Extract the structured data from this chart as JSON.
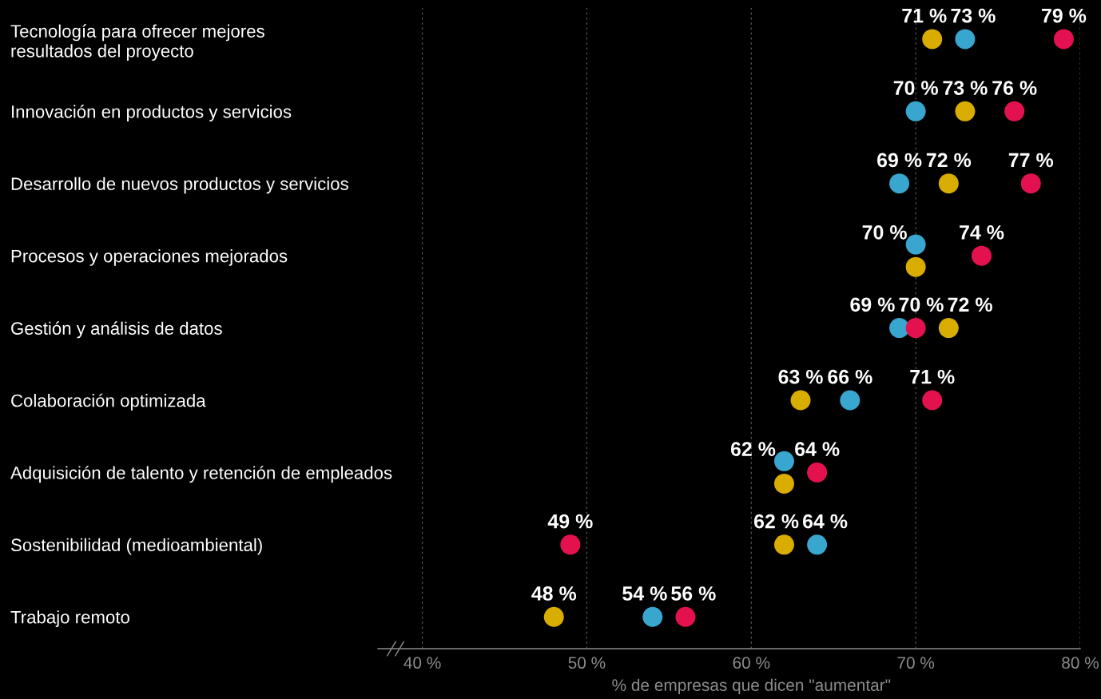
{
  "chart_data": {
    "type": "scatter",
    "orientation": "horizontal",
    "xlabel": "% de empresas que dicen \"aumentar\"",
    "categories": [
      "Tecnología para ofrecer mejores\nresultados del proyecto",
      "Innovación en productos y servicios",
      "Desarrollo de nuevos productos y servicios",
      "Procesos y operaciones mejorados",
      "Gestión y análisis de datos",
      "Colaboración optimizada",
      "Adquisición de talento y retención de empleados",
      "Sostenibilidad (medioambiental)",
      "Trabajo remoto"
    ],
    "series": [
      {
        "color": "#d9ac00",
        "values": [
          71,
          73,
          72,
          70,
          72,
          63,
          62,
          62,
          48
        ],
        "value_labels": [
          "71 %",
          "73 %",
          "72 %",
          null,
          "72 %",
          "63 %",
          null,
          "62 %",
          "48 %"
        ]
      },
      {
        "color": "#38a6cf",
        "values": [
          73,
          70,
          69,
          70,
          69,
          66,
          62,
          64,
          54
        ],
        "value_labels": [
          "73 %",
          "70 %",
          "69 %",
          "70 %",
          "69 %",
          "66 %",
          "62 %",
          "64 %",
          "54 %"
        ]
      },
      {
        "color": "#e3124f",
        "values": [
          79,
          76,
          77,
          74,
          70,
          71,
          64,
          49,
          56
        ],
        "value_labels": [
          "79 %",
          "76 %",
          "77 %",
          "74 %",
          "70 %",
          "71 %",
          "64 %",
          "49 %",
          "56 %"
        ]
      }
    ],
    "xlim": [
      37.3,
      80
    ],
    "xticks": [
      {
        "value": 40,
        "label": "40 %"
      },
      {
        "value": 50,
        "label": "50 %"
      },
      {
        "value": 60,
        "label": "60 %"
      },
      {
        "value": 70,
        "label": "70 %"
      },
      {
        "value": 80,
        "label": "80 %"
      }
    ],
    "grid": "x",
    "marker": "circle"
  }
}
